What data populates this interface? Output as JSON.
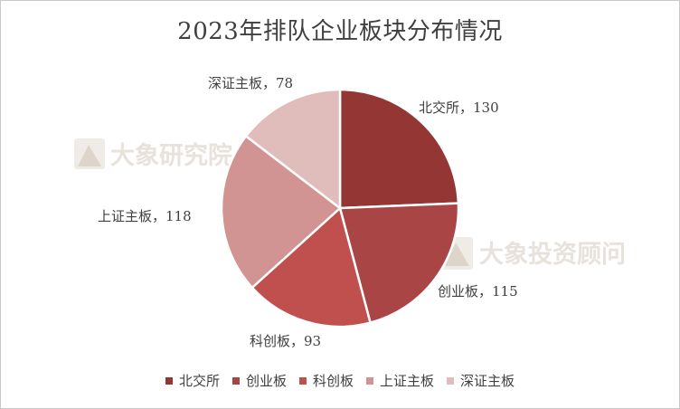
{
  "chart_data": {
    "type": "pie",
    "title": "2023年排队企业板块分布情况",
    "categories": [
      "北交所",
      "创业板",
      "科创板",
      "上证主板",
      "深证主板"
    ],
    "values": [
      130,
      115,
      93,
      118,
      78
    ],
    "colors": [
      "#943634",
      "#a94545",
      "#c0504d",
      "#d29492",
      "#e0bcbb"
    ],
    "data_labels": [
      "北交所，130",
      "创业板，115",
      "科创板，93",
      "上证主板，118",
      "深证主板，78"
    ],
    "legend_position": "bottom"
  },
  "watermarks": [
    "大象研究院",
    "大象投资顾问"
  ]
}
